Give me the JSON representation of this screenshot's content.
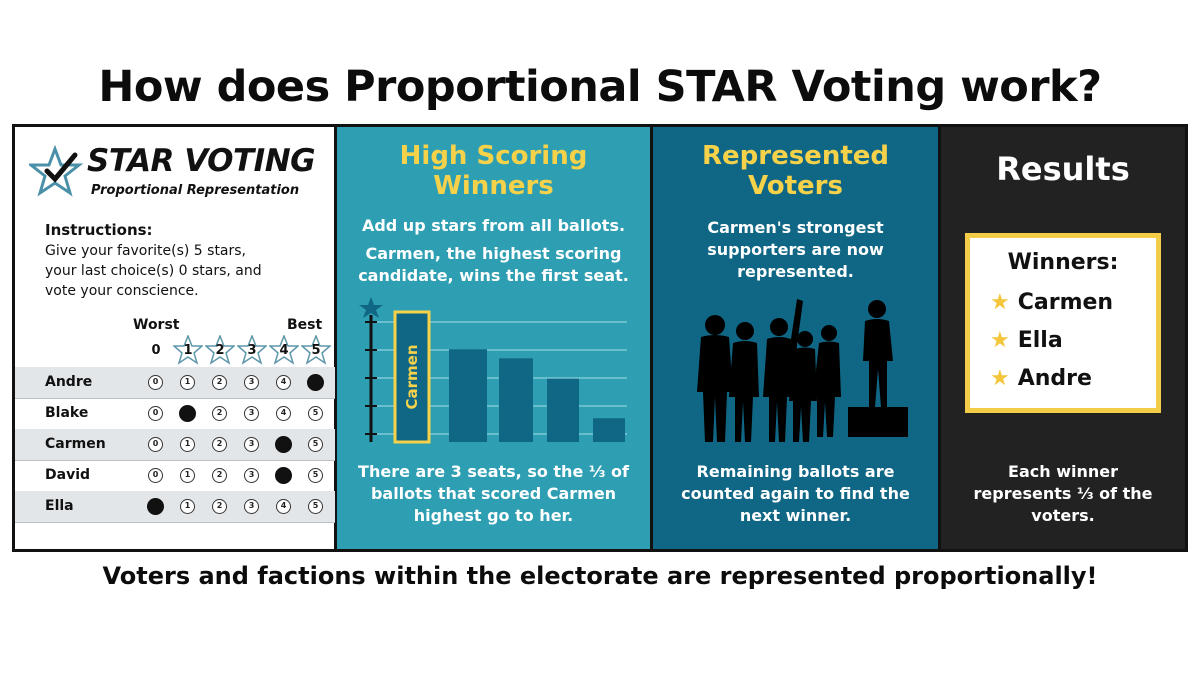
{
  "title": "How does Proportional STAR Voting work?",
  "footer": "Voters and factions within the electorate are represented proportionally!",
  "ballot": {
    "brand": "STAR VOTING",
    "subtitle": "Proportional Representation",
    "instructions_heading": "Instructions:",
    "instructions_lines": [
      "Give your favorite(s) 5 stars,",
      "your last choice(s) 0 stars, and",
      "vote your conscience."
    ],
    "worst_label": "Worst",
    "best_label": "Best",
    "score_labels": [
      "0",
      "1",
      "2",
      "3",
      "4",
      "5"
    ],
    "candidates": [
      {
        "name": "Andre",
        "score": 5
      },
      {
        "name": "Blake",
        "score": 1
      },
      {
        "name": "Carmen",
        "score": 4
      },
      {
        "name": "David",
        "score": 4
      },
      {
        "name": "Ella",
        "score": 0
      }
    ]
  },
  "panel_scoring": {
    "title_lines": [
      "High Scoring",
      "Winners"
    ],
    "text1": "Add up stars from all ballots.",
    "text2_lines": [
      "Carmen, the highest scoring",
      "candidate, wins the first seat."
    ],
    "bar_label": "Carmen",
    "bar_relative_heights": [
      1.0,
      0.82,
      0.74,
      0.56,
      0.21
    ],
    "bottom_lines": [
      "There are 3 seats, so the ⅓ of",
      "ballots that scored Carmen",
      "highest go to her."
    ]
  },
  "panel_represented": {
    "title_lines": [
      "Represented",
      "Voters"
    ],
    "text_lines": [
      "Carmen's strongest",
      "supporters are now",
      "represented."
    ],
    "bottom_lines": [
      "Remaining ballots are",
      "counted again to find the",
      "next winner."
    ]
  },
  "panel_results": {
    "title": "Results",
    "winners_heading": "Winners:",
    "winners": [
      "Carmen",
      "Ella",
      "Andre"
    ],
    "bottom_lines": [
      "Each winner",
      "represents ⅓ of the",
      "voters."
    ]
  },
  "colors": {
    "teal": "#2e9fb3",
    "dark_teal": "#0f6785",
    "black_panel": "#222222",
    "yellow": "#f6d24a",
    "bar": "#0f6785"
  }
}
